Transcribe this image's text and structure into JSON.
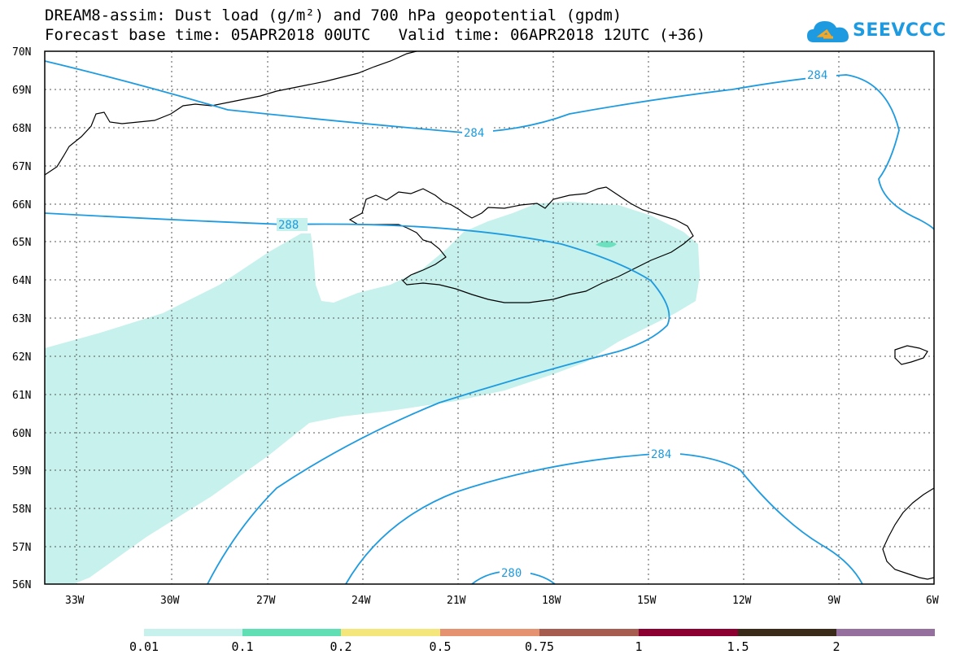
{
  "header": {
    "line1": "DREAM8-assim: Dust load (g/m²) and 700 hPa geopotential (gpdm)",
    "line2": "Forecast base time: 05APR2018 00UTC   Valid time: 06APR2018 12UTC (+36)"
  },
  "logo": {
    "text": "SEEVCCC",
    "icon": "cloud-icon",
    "color": "#1e9be0"
  },
  "map": {
    "lat_labels": [
      "70N",
      "69N",
      "68N",
      "67N",
      "66N",
      "65N",
      "64N",
      "63N",
      "62N",
      "61N",
      "60N",
      "59N",
      "58N",
      "57N",
      "56N"
    ],
    "lon_labels": [
      "33W",
      "30W",
      "27W",
      "24W",
      "21W",
      "18W",
      "15W",
      "12W",
      "9W",
      "6W"
    ],
    "contour_labels": [
      "284",
      "284",
      "288",
      "284",
      "280"
    ],
    "contour_color": "#1e9be0",
    "dust_color_low": "#c6f1ec",
    "dust_color_mid": "#6de0bf"
  },
  "colorbar": {
    "labels": [
      "0.01",
      "0.1",
      "0.2",
      "0.5",
      "0.75",
      "1",
      "1.5",
      "2"
    ],
    "colors": [
      "#c6f1ec",
      "#5fdfb3",
      "#f4e67a",
      "#e59270",
      "#a65d4f",
      "#8b0030",
      "#3a2a1a",
      "#95709e"
    ]
  }
}
